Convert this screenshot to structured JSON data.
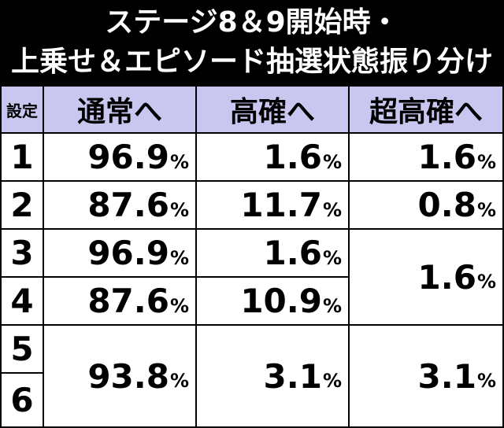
{
  "title": {
    "line1": "ステージ8＆9開始時・",
    "line2": "上乗せ＆エピソード抽選状態振り分け"
  },
  "table": {
    "headers": {
      "setting": "設定",
      "col1": "通常へ",
      "col2": "高確へ",
      "col3": "超高確へ"
    },
    "settings": [
      "1",
      "2",
      "3",
      "4",
      "5",
      "6"
    ],
    "values": {
      "r1": {
        "c1": "96.9",
        "c2": "1.6",
        "c3": "1.6"
      },
      "r2": {
        "c1": "87.6",
        "c2": "11.7",
        "c3": "0.8"
      },
      "r3": {
        "c1": "96.9",
        "c2": "1.6"
      },
      "r4": {
        "c1": "87.6",
        "c2": "10.9"
      },
      "r34": {
        "c3": "1.6"
      },
      "r56": {
        "c1": "93.8",
        "c2": "3.1",
        "c3": "3.1"
      }
    },
    "percent_sign": "%"
  },
  "colors": {
    "header_bg": "#c9c6ef",
    "grid_lines": "#000000",
    "title_text": "#ffffff"
  }
}
